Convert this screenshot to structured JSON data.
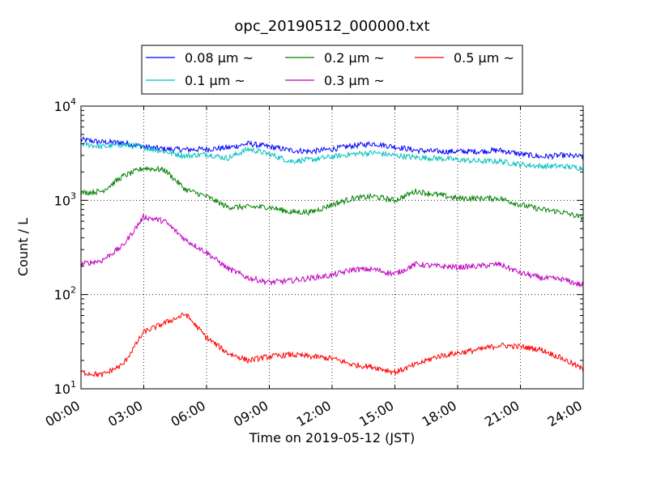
{
  "chart_data": {
    "type": "line",
    "title": "opc_20190512_000000.txt",
    "xlabel": "Time on 2019-05-12 (JST)",
    "ylabel": "Count / L",
    "y_scale": "log",
    "x_unit": "hours",
    "xlim": [
      0,
      24
    ],
    "ylim": [
      10,
      10000
    ],
    "x_ticks": [
      "00:00",
      "03:00",
      "06:00",
      "09:00",
      "12:00",
      "15:00",
      "18:00",
      "21:00",
      "24:00"
    ],
    "y_ticks": [
      {
        "base": "10",
        "exp": "1"
      },
      {
        "base": "10",
        "exp": "2"
      },
      {
        "base": "10",
        "exp": "3"
      },
      {
        "base": "10",
        "exp": "4"
      }
    ],
    "grid": true,
    "legend_position": "top-center",
    "series": [
      {
        "name": "0.08 μm ~",
        "color": "#0000ff",
        "x": [
          0,
          1,
          2,
          3,
          4,
          5,
          6,
          7,
          8,
          9,
          10,
          11,
          12,
          13,
          14,
          15,
          16,
          17,
          18,
          19,
          20,
          21,
          22,
          23,
          24
        ],
        "y": [
          4400,
          4150,
          4100,
          3700,
          3500,
          3450,
          3500,
          3600,
          4000,
          3700,
          3400,
          3300,
          3500,
          3800,
          4000,
          3700,
          3400,
          3300,
          3300,
          3300,
          3400,
          3100,
          2900,
          3000,
          2900
        ]
      },
      {
        "name": "0.1 μm ~",
        "color": "#00bfbf",
        "x": [
          0,
          1,
          2,
          3,
          4,
          5,
          6,
          7,
          8,
          9,
          10,
          11,
          12,
          13,
          14,
          15,
          16,
          17,
          18,
          19,
          20,
          21,
          22,
          23,
          24
        ],
        "y": [
          4000,
          3700,
          3900,
          3650,
          3300,
          2950,
          3100,
          2800,
          3500,
          3100,
          2600,
          2700,
          2900,
          3100,
          3200,
          3000,
          2850,
          2800,
          2700,
          2600,
          2600,
          2400,
          2300,
          2300,
          2200
        ]
      },
      {
        "name": "0.2 μm ~",
        "color": "#008000",
        "x": [
          0,
          1,
          2,
          3,
          4,
          5,
          6,
          7,
          8,
          9,
          10,
          11,
          12,
          13,
          14,
          15,
          16,
          17,
          18,
          19,
          20,
          21,
          22,
          23,
          24
        ],
        "y": [
          1200,
          1250,
          1800,
          2200,
          2100,
          1300,
          1100,
          850,
          850,
          850,
          750,
          750,
          900,
          1050,
          1100,
          1000,
          1250,
          1150,
          1050,
          1050,
          1050,
          900,
          800,
          750,
          650
        ]
      },
      {
        "name": "0.3 μm ~",
        "color": "#bf00bf",
        "x": [
          0,
          1,
          2,
          3,
          4,
          5,
          6,
          7,
          8,
          9,
          10,
          11,
          12,
          13,
          14,
          15,
          16,
          17,
          18,
          19,
          20,
          21,
          22,
          23,
          24
        ],
        "y": [
          210,
          230,
          330,
          670,
          600,
          380,
          280,
          190,
          150,
          135,
          140,
          150,
          160,
          185,
          185,
          165,
          210,
          200,
          195,
          200,
          210,
          170,
          150,
          145,
          125
        ]
      },
      {
        "name": "0.5 μm ~",
        "color": "#ff0000",
        "x": [
          0,
          1,
          2,
          3,
          4,
          5,
          6,
          7,
          8,
          9,
          10,
          11,
          12,
          13,
          14,
          15,
          16,
          17,
          18,
          19,
          20,
          21,
          22,
          23,
          24
        ],
        "y": [
          15,
          14,
          18,
          40,
          50,
          62,
          35,
          24,
          20,
          22,
          23,
          22,
          21,
          18,
          17,
          15,
          18,
          22,
          24,
          26,
          29,
          28,
          26,
          21,
          16
        ]
      }
    ]
  }
}
